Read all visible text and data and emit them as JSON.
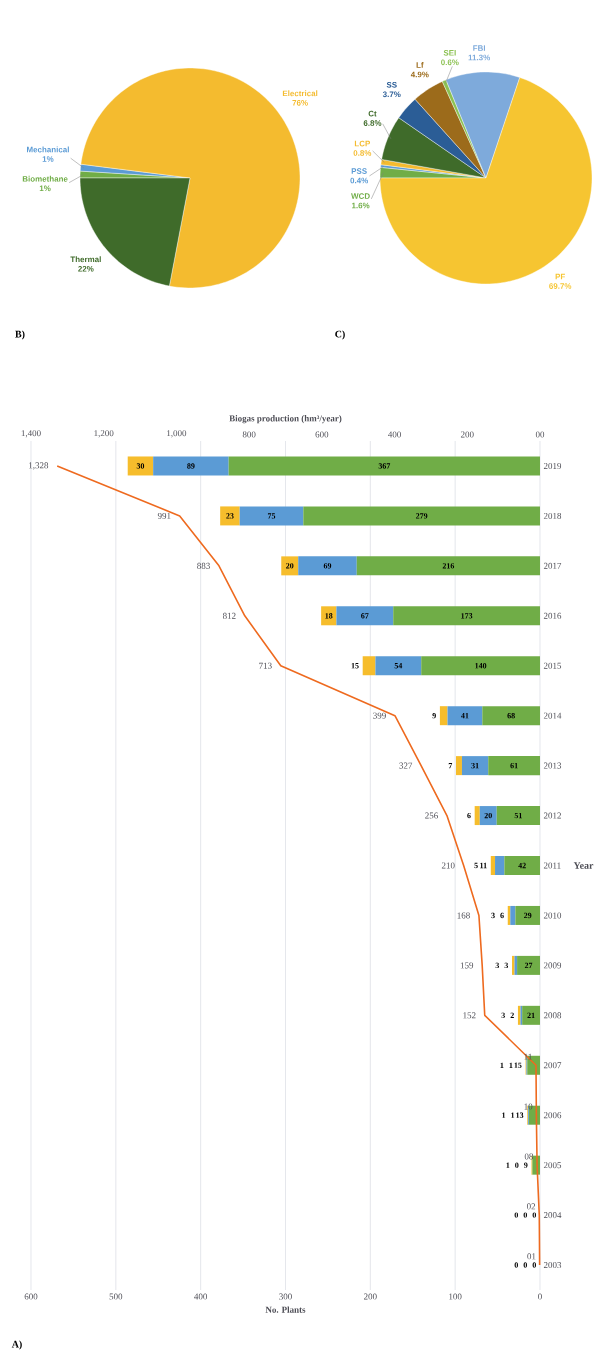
{
  "chart_data": [
    {
      "type": "bar",
      "orientation": "horizontal",
      "title": "A)",
      "xlabel": "No. Plants",
      "x2label": "Biogas production (hm³/year)",
      "ylabel": "Year",
      "categories": [
        "2019",
        "2018",
        "2017",
        "2016",
        "2015",
        "2014",
        "2013",
        "2012",
        "2011",
        "2010",
        "2009",
        "2008",
        "2007",
        "2006",
        "2005",
        "2004",
        "2003"
      ],
      "stacked": true,
      "data_labels": true,
      "grid": "x",
      "series": [
        {
          "color": "#70ad47",
          "values": [
            367,
            279,
            216,
            173,
            140,
            68,
            61,
            51,
            42,
            29,
            27,
            21,
            15,
            13,
            9,
            0,
            0
          ]
        },
        {
          "color": "#5b9bd5",
          "values": [
            89,
            75,
            69,
            67,
            54,
            41,
            31,
            20,
            11,
            6,
            3,
            2,
            1,
            1,
            0,
            0,
            0
          ]
        },
        {
          "color": "#f6bd2c",
          "values": [
            30,
            23,
            20,
            18,
            15,
            9,
            7,
            6,
            5,
            3,
            3,
            3,
            1,
            1,
            1,
            0,
            0
          ]
        },
        {
          "type": "line",
          "axis": "x2",
          "color": "#ee6a1f",
          "values": [
            1328,
            991,
            883,
            812,
            713,
            399,
            327,
            256,
            210,
            168,
            159,
            152,
            11,
            10,
            8,
            2,
            1
          ],
          "value_labels": [
            "1,328",
            "991",
            "883",
            "812",
            "713",
            "399",
            "327",
            "256",
            "210",
            "168",
            "159",
            "152",
            "11",
            "10",
            "08",
            "02",
            "01"
          ]
        }
      ],
      "xlim": [
        600,
        0
      ],
      "xticks": [
        0,
        100,
        200,
        300,
        400,
        500,
        600
      ],
      "x2lim": [
        1400,
        0
      ],
      "x2ticks": [
        {
          "value": 0,
          "label": "00"
        },
        200,
        400,
        600,
        800,
        {
          "value": 1000,
          "label": "1,000"
        },
        {
          "value": 1200,
          "label": "1,200"
        },
        {
          "value": 1400,
          "label": "1,400"
        }
      ]
    },
    {
      "type": "pie",
      "title": "B)",
      "categories": [
        "Biomethane",
        "Mechanical",
        "Electrical",
        "Thermal"
      ],
      "values": [
        1,
        1,
        76,
        22
      ],
      "colors": [
        "#70ad47",
        "#5b9bd5",
        "#f4bb2f",
        "#3f6b2a"
      ],
      "value_labels": [
        "1%",
        "1%",
        "76%",
        "22%"
      ]
    },
    {
      "type": "pie",
      "title": "C)",
      "categories": [
        "WCD",
        "PSS",
        "LCP",
        "Ct",
        "SS",
        "Lf",
        "SEI",
        "FBI",
        "PF"
      ],
      "values": [
        1.6,
        0.4,
        0.8,
        6.8,
        3.7,
        4.9,
        0.6,
        11.3,
        69.7
      ],
      "colors": [
        "#70ad47",
        "#5b9bd5",
        "#f4bb2f",
        "#3f6b2a",
        "#2b5d96",
        "#9c6b1b",
        "#8cc152",
        "#7eaadb",
        "#f6c531"
      ],
      "value_labels": [
        "1.6%",
        "0.4%",
        "0.8%",
        "6.8%",
        "3.7%",
        "4.9%",
        "0.6%",
        "11.3%",
        "69.7%"
      ]
    }
  ]
}
